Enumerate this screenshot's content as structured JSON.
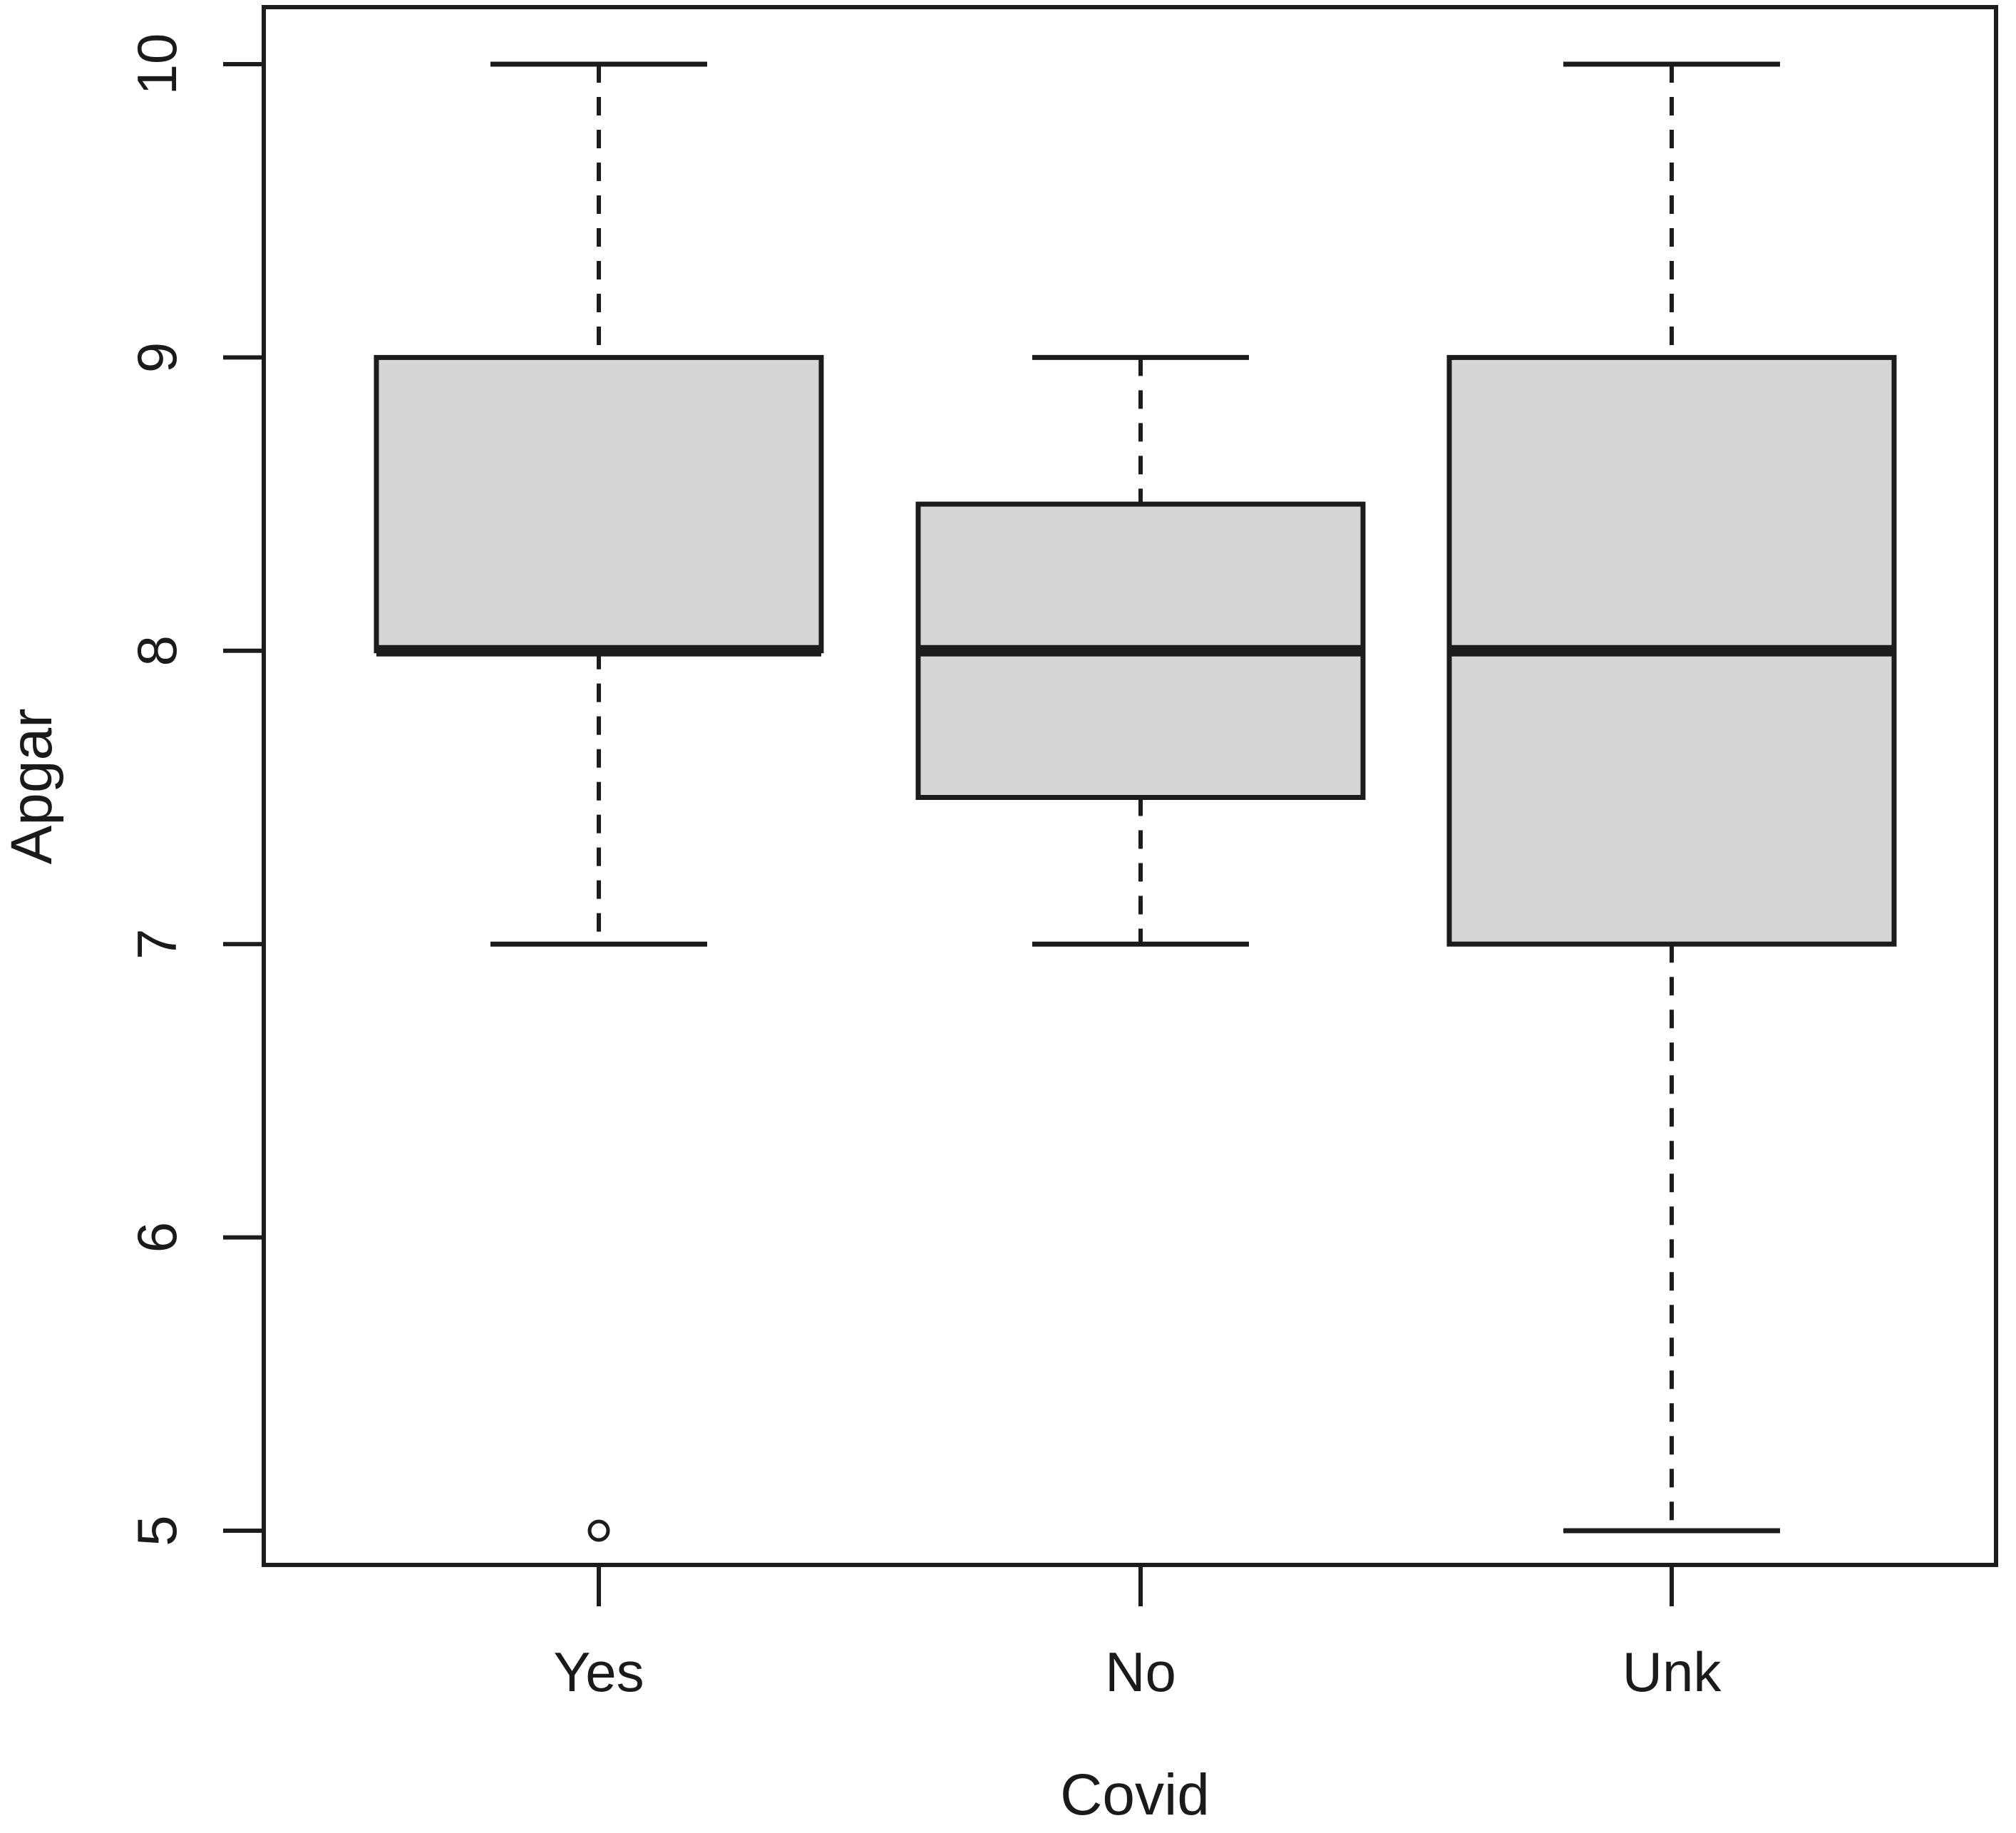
{
  "figure": {
    "background": "#ffffff"
  },
  "chart_data": {
    "type": "box",
    "title": "",
    "xlabel": "Covid",
    "ylabel": "Apgar",
    "categories": [
      "Yes",
      "No",
      "Unk"
    ],
    "y_ticks": [
      5,
      6,
      7,
      8,
      9,
      10
    ],
    "ylim": [
      4.87,
      10.2
    ],
    "grid": false,
    "legend": false,
    "series": [
      {
        "name": "Yes",
        "whisker_low": 7,
        "q1": 8,
        "median": 8,
        "q3": 9,
        "whisker_high": 10,
        "outliers": [
          5
        ]
      },
      {
        "name": "No",
        "whisker_low": 7,
        "q1": 7.5,
        "median": 8,
        "q3": 8.5,
        "whisker_high": 9,
        "outliers": []
      },
      {
        "name": "Unk",
        "whisker_low": 5,
        "q1": 7,
        "median": 8,
        "q3": 9,
        "whisker_high": 10,
        "outliers": []
      }
    ],
    "colors": {
      "box_fill": "#d6d6d6",
      "line": "#1c1c1c",
      "text": "#1a1a1a"
    }
  }
}
